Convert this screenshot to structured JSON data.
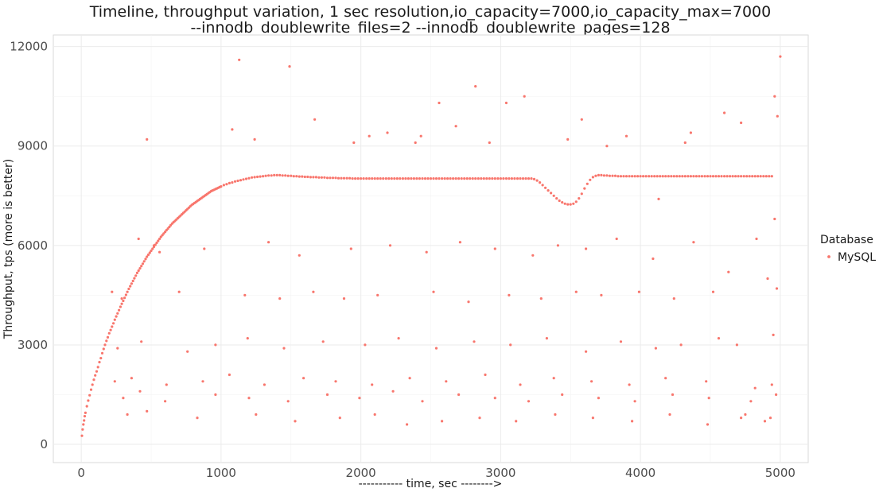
{
  "chart_data": {
    "type": "scatter",
    "title_lines": [
      "Timeline, throughput variation, 1 sec resolution,io_capacity=7000,io_capacity_max=7000",
      "--innodb_doublewrite_files=2 --innodb_doublewrite_pages=128"
    ],
    "xlabel": "----------- time, sec -------->",
    "ylabel": "Throughput, tps (more is better)",
    "xlim": [
      -200,
      5200
    ],
    "ylim": [
      -550,
      12350
    ],
    "x_ticks": [
      0,
      1000,
      2000,
      3000,
      4000,
      5000
    ],
    "x_tick_labels": [
      "0",
      "1000",
      "2000",
      "3000",
      "4000",
      "5000"
    ],
    "y_ticks": [
      0,
      3000,
      6000,
      9000,
      12000
    ],
    "y_tick_labels": [
      "0",
      "3000",
      "6000",
      "9000",
      "12000"
    ],
    "grid": true,
    "legend_position": "right",
    "legend": {
      "title": "Database",
      "entries": [
        {
          "name": "MySQL",
          "color": "#F8766D"
        }
      ]
    },
    "series": [
      {
        "name": "MySQL",
        "color": "#F8766D",
        "x": [
          5,
          10,
          15,
          20,
          25,
          30,
          40,
          50,
          60,
          70,
          80,
          90,
          100,
          110,
          120,
          130,
          140,
          150,
          160,
          170,
          180,
          190,
          200,
          210,
          220,
          230,
          240,
          250,
          260,
          270,
          280,
          290,
          300,
          310,
          320,
          330,
          340,
          350,
          360,
          370,
          380,
          390,
          400,
          410,
          420,
          430,
          440,
          450,
          460,
          470,
          480,
          490,
          500,
          510,
          520,
          530,
          540,
          550,
          560,
          570,
          580,
          590,
          600,
          610,
          620,
          630,
          640,
          650,
          660,
          670,
          680,
          690,
          700,
          710,
          720,
          730,
          740,
          750,
          760,
          770,
          780,
          790,
          800,
          810,
          820,
          830,
          840,
          850,
          860,
          870,
          880,
          890,
          900,
          910,
          920,
          930,
          940,
          950,
          960,
          970,
          980,
          990,
          1000,
          1020,
          1040,
          1060,
          1080,
          1100,
          1120,
          1140,
          1160,
          1180,
          1200,
          1220,
          1240,
          1260,
          1280,
          1300,
          1320,
          1340,
          1360,
          1380,
          1400,
          1420,
          1440,
          1460,
          1480,
          1500,
          1520,
          1540,
          1560,
          1580,
          1600,
          1620,
          1640,
          1660,
          1680,
          1700,
          1720,
          1740,
          1760,
          1780,
          1800,
          1820,
          1840,
          1860,
          1880,
          1900,
          1920,
          1940,
          1960,
          1980,
          2000,
          2020,
          2040,
          2060,
          2080,
          2100,
          2120,
          2140,
          2160,
          2180,
          2200,
          2220,
          2240,
          2260,
          2280,
          2300,
          2320,
          2340,
          2360,
          2380,
          2400,
          2420,
          2440,
          2460,
          2480,
          2500,
          2520,
          2540,
          2560,
          2580,
          2600,
          2620,
          2640,
          2660,
          2680,
          2700,
          2720,
          2740,
          2760,
          2780,
          2800,
          2820,
          2840,
          2860,
          2880,
          2900,
          2920,
          2940,
          2960,
          2980,
          3000,
          3020,
          3040,
          3060,
          3080,
          3100,
          3120,
          3140,
          3160,
          3180,
          3200,
          3220,
          3240,
          3260,
          3280,
          3300,
          3320,
          3340,
          3360,
          3380,
          3400,
          3420,
          3440,
          3460,
          3480,
          3500,
          3520,
          3540,
          3560,
          3580,
          3600,
          3620,
          3640,
          3660,
          3680,
          3700,
          3720,
          3740,
          3760,
          3780,
          3800,
          3820,
          3840,
          3860,
          3880,
          3900,
          3920,
          3940,
          3960,
          3980,
          4000,
          4020,
          4040,
          4060,
          4080,
          4100,
          4120,
          4140,
          4160,
          4180,
          4200,
          4220,
          4240,
          4260,
          4280,
          4300,
          4320,
          4340,
          4360,
          4380,
          4400,
          4420,
          4440,
          4460,
          4480,
          4500,
          4520,
          4540,
          4560,
          4580,
          4600,
          4620,
          4640,
          4660,
          4680,
          4700,
          4720,
          4740,
          4760,
          4780,
          4800,
          4820,
          4840,
          4860,
          4880,
          4900,
          4920,
          4940,
          4960,
          4980,
          5000,
          1490,
          1130,
          2820,
          3170,
          4600,
          4720,
          2390,
          1670,
          2060,
          2560,
          3040,
          3580,
          3760,
          4320,
          4360,
          1080,
          1240,
          1950,
          2190,
          2430,
          2680,
          2920,
          3480,
          3900,
          4130,
          4830,
          4960,
          410,
          470,
          520,
          880,
          560,
          1340,
          1560,
          1930,
          2210,
          2470,
          2710,
          2960,
          3230,
          3410,
          3610,
          3830,
          4090,
          4380,
          4630,
          4910,
          4975,
          220,
          290,
          700,
          1170,
          1420,
          1660,
          1880,
          2120,
          2520,
          2770,
          3060,
          3290,
          3540,
          3720,
          3990,
          4240,
          4520,
          4690,
          4950,
          260,
          430,
          760,
          960,
          1190,
          1450,
          1730,
          2030,
          2270,
          2540,
          2810,
          3070,
          3330,
          3610,
          3860,
          4110,
          4290,
          4560,
          4820,
          4940,
          240,
          360,
          610,
          870,
          1060,
          1310,
          1590,
          1820,
          2080,
          2350,
          2610,
          2890,
          3140,
          3380,
          3650,
          3920,
          4180,
          4470,
          4790,
          4970,
          300,
          420,
          600,
          960,
          1200,
          1480,
          1760,
          1990,
          2230,
          2440,
          2700,
          2960,
          3200,
          3440,
          3700,
          3960,
          4230,
          4490,
          4750,
          4930,
          330,
          470,
          830,
          1250,
          1530,
          1850,
          2100,
          2330,
          2580,
          2850,
          3110,
          3390,
          3660,
          3940,
          4210,
          4480,
          4720,
          4890
        ],
        "y": [
          260,
          450,
          600,
          720,
          850,
          950,
          1150,
          1320,
          1480,
          1650,
          1800,
          1950,
          2080,
          2200,
          2330,
          2480,
          2600,
          2750,
          2880,
          3000,
          3120,
          3230,
          3350,
          3450,
          3550,
          3650,
          3760,
          3860,
          3950,
          4050,
          4150,
          4240,
          4330,
          4420,
          4510,
          4600,
          4690,
          4770,
          4850,
          4930,
          5010,
          5090,
          5170,
          5240,
          5310,
          5380,
          5450,
          5520,
          5590,
          5660,
          5720,
          5780,
          5840,
          5900,
          5960,
          6020,
          6080,
          6140,
          6200,
          6260,
          6310,
          6360,
          6410,
          6460,
          6510,
          6560,
          6610,
          6660,
          6700,
          6740,
          6780,
          6820,
          6860,
          6900,
          6940,
          6980,
          7020,
          7060,
          7100,
          7140,
          7180,
          7220,
          7250,
          7280,
          7310,
          7340,
          7370,
          7400,
          7430,
          7460,
          7490,
          7520,
          7550,
          7580,
          7610,
          7640,
          7660,
          7680,
          7700,
          7720,
          7740,
          7760,
          7780,
          7820,
          7850,
          7880,
          7900,
          7930,
          7950,
          7970,
          7990,
          8010,
          8030,
          8050,
          8060,
          8070,
          8080,
          8090,
          8100,
          8110,
          8110,
          8120,
          8120,
          8120,
          8110,
          8110,
          8100,
          8100,
          8090,
          8090,
          8080,
          8080,
          8070,
          8070,
          8060,
          8060,
          8060,
          8050,
          8050,
          8050,
          8040,
          8040,
          8040,
          8040,
          8030,
          8030,
          8030,
          8030,
          8030,
          8020,
          8020,
          8020,
          8020,
          8020,
          8020,
          8020,
          8020,
          8020,
          8020,
          8020,
          8020,
          8020,
          8020,
          8020,
          8020,
          8020,
          8020,
          8020,
          8020,
          8020,
          8020,
          8020,
          8020,
          8020,
          8020,
          8020,
          8020,
          8020,
          8020,
          8020,
          8020,
          8020,
          8020,
          8020,
          8020,
          8020,
          8020,
          8020,
          8020,
          8020,
          8020,
          8020,
          8020,
          8020,
          8020,
          8020,
          8020,
          8020,
          8020,
          8020,
          8020,
          8020,
          8020,
          8020,
          8020,
          8020,
          8020,
          8020,
          8020,
          8020,
          8020,
          8020,
          8020,
          8020,
          8000,
          7960,
          7900,
          7820,
          7740,
          7660,
          7580,
          7500,
          7420,
          7350,
          7300,
          7260,
          7240,
          7240,
          7260,
          7320,
          7420,
          7560,
          7720,
          7860,
          7980,
          8060,
          8100,
          8120,
          8120,
          8110,
          8110,
          8100,
          8100,
          8100,
          8090,
          8090,
          8090,
          8090,
          8090,
          8090,
          8090,
          8090,
          8090,
          8090,
          8090,
          8090,
          8090,
          8090,
          8090,
          8090,
          8090,
          8090,
          8090,
          8090,
          8090,
          8090,
          8090,
          8090,
          8090,
          8090,
          8090,
          8090,
          8090,
          8090,
          8090,
          8090,
          8090,
          8090,
          8090,
          8090,
          8090,
          8090,
          8090,
          8090,
          8090,
          8090,
          8090,
          8090,
          8090,
          8090,
          8090,
          8090,
          8090,
          8090,
          8090,
          8090,
          8090,
          8090,
          8090,
          8090,
          10500,
          9900,
          11700,
          11400,
          11600,
          10800,
          10500,
          10000,
          9700,
          9100,
          9800,
          9300,
          10300,
          10300,
          9800,
          9000,
          9100,
          9400,
          9500,
          9200,
          9100,
          9400,
          9300,
          9600,
          9100,
          9200,
          9300,
          7400,
          6200,
          6800,
          6200,
          9200,
          6000,
          5900,
          5800,
          6100,
          5700,
          5900,
          6000,
          5800,
          6100,
          5900,
          5700,
          6000,
          5900,
          6200,
          5600,
          6100,
          5200,
          5000,
          4700,
          4600,
          4400,
          4600,
          4500,
          4400,
          4600,
          4400,
          4500,
          4600,
          4300,
          4500,
          4400,
          4600,
          4500,
          4600,
          4400,
          4600,
          3000,
          3300,
          2900,
          3100,
          2800,
          3000,
          3200,
          2900,
          3100,
          3000,
          3200,
          2900,
          3100,
          3000,
          3200,
          2800,
          3100,
          2900,
          3000,
          3200,
          1700,
          1800,
          1900,
          2000,
          1800,
          1900,
          2100,
          1800,
          2000,
          1900,
          1800,
          2000,
          1900,
          2100,
          1800,
          2000,
          1900,
          1800,
          2000,
          1900,
          1300,
          1500,
          1400,
          1600,
          1300,
          1500,
          1400,
          1300,
          1500,
          1400,
          1600,
          1300,
          1500,
          1400,
          1300,
          1500,
          1400,
          1300,
          1500,
          1400,
          900,
          800,
          900,
          1000,
          800,
          900,
          700,
          800,
          900,
          600,
          700,
          800,
          700,
          900,
          800,
          700,
          900,
          600,
          800,
          700
        ]
      }
    ]
  }
}
